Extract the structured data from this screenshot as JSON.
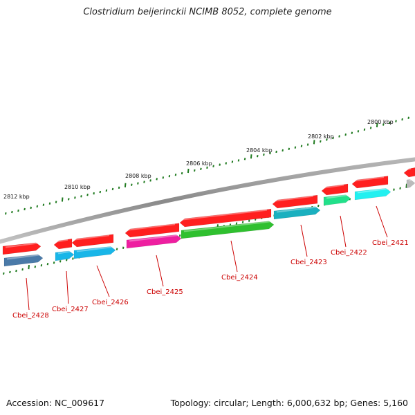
{
  "title": "Clostridium beijerinckii NCIMB 8052, complete genome",
  "footer": {
    "accession": "Accession: NC_009617",
    "summary": "Topology: circular; Length: 6,000,632 bp; Genes: 5,160"
  },
  "scale_labels": [
    "2812 kbp",
    "2810 kbp",
    "2808 kbp",
    "2806 kbp",
    "2804 kbp",
    "2802 kbp",
    "2800 kbp"
  ],
  "gene_labels": [
    "Cbei_2428",
    "Cbei_2427",
    "Cbei_2426",
    "Cbei_2425",
    "Cbei_2424",
    "Cbei_2423",
    "Cbei_2422",
    "Cbei_2421"
  ],
  "colors": {
    "cds": "#ff1f1f",
    "label": "#cc0000",
    "tick": "#1f7a1f",
    "backbone": "#8a8a8a",
    "gene_2428": "#4a7aa8",
    "gene_2427": "#19b6e8",
    "gene_2426": "#19b6e8",
    "gene_2425": "#ee1fa0",
    "gene_2424": "#2fc02f",
    "gene_2423": "#1ab0bf",
    "gene_2422": "#22e08a",
    "gene_2421": "#22f0f0"
  }
}
